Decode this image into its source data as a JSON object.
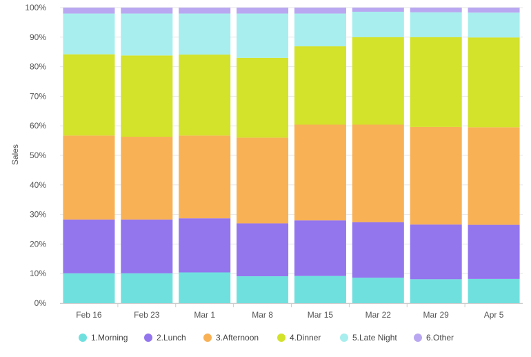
{
  "chart_data": {
    "type": "bar",
    "stacked": true,
    "normalized": true,
    "ylabel": "Sales",
    "xlabel": "",
    "ylim": [
      0,
      100
    ],
    "yticks": [
      "0%",
      "10%",
      "20%",
      "30%",
      "40%",
      "50%",
      "60%",
      "70%",
      "80%",
      "90%",
      "100%"
    ],
    "categories": [
      "Feb 16",
      "Feb 23",
      "Mar 1",
      "Mar 8",
      "Mar 15",
      "Mar 22",
      "Mar 29",
      "Apr 5"
    ],
    "series": [
      {
        "name": "1.Morning",
        "color": "#70E0DE",
        "values": [
          10.1,
          10.1,
          10.4,
          9.1,
          9.2,
          8.6,
          8.1,
          8.2
        ]
      },
      {
        "name": "2.Lunch",
        "color": "#9375EE",
        "values": [
          18.2,
          18.2,
          18.3,
          17.9,
          18.8,
          18.8,
          18.5,
          18.3
        ]
      },
      {
        "name": "3.Afternoon",
        "color": "#F8B155",
        "values": [
          28.4,
          28.0,
          28.0,
          29.0,
          32.4,
          33.0,
          33.0,
          33.0
        ]
      },
      {
        "name": "4.Dinner",
        "color": "#D3E22A",
        "values": [
          27.5,
          27.5,
          27.4,
          27.0,
          26.5,
          29.6,
          30.4,
          30.4
        ]
      },
      {
        "name": "5.Late Night",
        "color": "#A8EEEE",
        "values": [
          13.8,
          14.2,
          13.9,
          15.0,
          11.1,
          8.6,
          8.4,
          8.4
        ]
      },
      {
        "name": "6.Other",
        "color": "#B9A7F1",
        "values": [
          2.0,
          2.0,
          2.0,
          2.0,
          2.0,
          1.4,
          1.6,
          1.7
        ]
      }
    ],
    "grid": true,
    "legend": "bottom"
  }
}
